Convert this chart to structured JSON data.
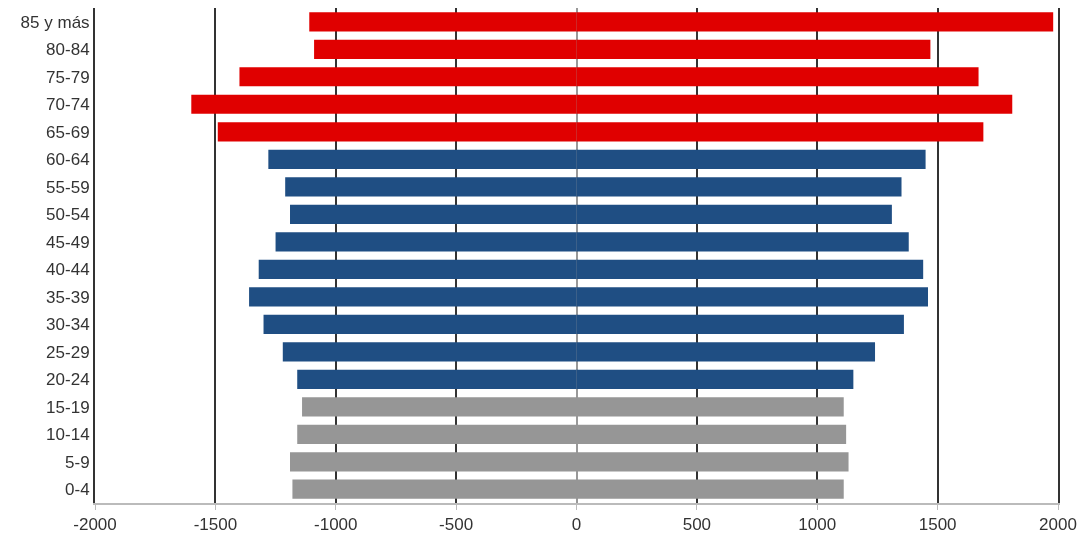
{
  "chart_data": {
    "type": "bar",
    "orientation": "horizontal",
    "stacked": true,
    "categories": [
      "85 y más",
      "80-84",
      "75-79",
      "70-74",
      "65-69",
      "60-64",
      "55-59",
      "50-54",
      "45-49",
      "40-44",
      "35-39",
      "30-34",
      "25-29",
      "20-24",
      "15-19",
      "10-14",
      "5-9",
      "0-4"
    ],
    "series": [
      {
        "colors": [
          "#e00000",
          "#e00000",
          "#e00000",
          "#e00000",
          "#e00000",
          "#1f4e83",
          "#1f4e83",
          "#1f4e83",
          "#1f4e83",
          "#1f4e83",
          "#1f4e83",
          "#1f4e83",
          "#1f4e83",
          "#1f4e83",
          "#969696",
          "#969696",
          "#969696",
          "#969696"
        ],
        "values": [
          -1110,
          -1090,
          -1400,
          -1600,
          -1490,
          -1280,
          -1210,
          -1190,
          -1250,
          -1320,
          -1360,
          -1300,
          -1220,
          -1160,
          -1140,
          -1160,
          -1190,
          -1180
        ]
      },
      {
        "colors": [
          "#e00000",
          "#e00000",
          "#e00000",
          "#e00000",
          "#e00000",
          "#1f4e83",
          "#1f4e83",
          "#1f4e83",
          "#1f4e83",
          "#1f4e83",
          "#1f4e83",
          "#1f4e83",
          "#1f4e83",
          "#1f4e83",
          "#969696",
          "#969696",
          "#969696",
          "#969696"
        ],
        "values": [
          1980,
          1470,
          1670,
          1810,
          1690,
          1450,
          1350,
          1310,
          1380,
          1440,
          1460,
          1360,
          1240,
          1150,
          1110,
          1120,
          1130,
          1110
        ]
      }
    ],
    "xlim": [
      -2000,
      2000
    ],
    "xticks": [
      -2000,
      -1500,
      -1000,
      -500,
      0,
      500,
      1000,
      1500,
      2000
    ],
    "grid": "x"
  }
}
